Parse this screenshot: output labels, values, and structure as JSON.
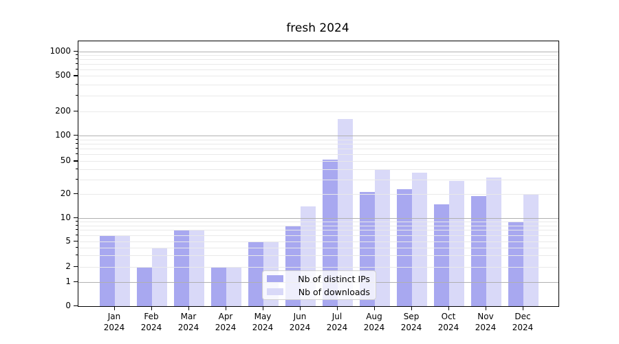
{
  "title": "fresh 2024",
  "colors": {
    "distinct_ips_bar": "#a8a8f0",
    "downloads_bar": "#d9d9f8",
    "major_grid": "#b0b0b0",
    "minor_grid": "#e9e9e9",
    "axis_spine": "#000000",
    "background": "#ffffff",
    "legend_border": "#d0d0d0"
  },
  "legend": {
    "items": [
      {
        "label": "Nb of distinct IPs",
        "color_key": "distinct_ips_bar"
      },
      {
        "label": "Nb of downloads",
        "color_key": "downloads_bar"
      }
    ]
  },
  "chart_data": {
    "type": "bar",
    "title": "fresh 2024",
    "categories": [
      "Jan 2024",
      "Feb 2024",
      "Mar 2024",
      "Apr 2024",
      "May 2024",
      "Jun 2024",
      "Jul 2024",
      "Aug 2024",
      "Sep 2024",
      "Oct 2024",
      "Nov 2024",
      "Dec 2024"
    ],
    "series": [
      {
        "name": "Nb of distinct IPs",
        "color": "#a8a8f0",
        "values": [
          6,
          2,
          7,
          2,
          5,
          8,
          52,
          21,
          23,
          15,
          19,
          9
        ]
      },
      {
        "name": "Nb of downloads",
        "color": "#d9d9f8",
        "values": [
          6,
          4,
          7,
          2,
          5,
          14,
          160,
          40,
          36,
          29,
          32,
          20
        ]
      }
    ],
    "xlabel": "",
    "ylabel": "",
    "yscale": "symlog",
    "yticks": [
      0,
      1,
      2,
      5,
      10,
      20,
      50,
      100,
      200,
      500,
      1000
    ],
    "ylim": [
      0,
      1500
    ],
    "grid": "horizontal major and minor gridlines, drawn above bars",
    "legend_position": "inside axes, lower center-left"
  }
}
